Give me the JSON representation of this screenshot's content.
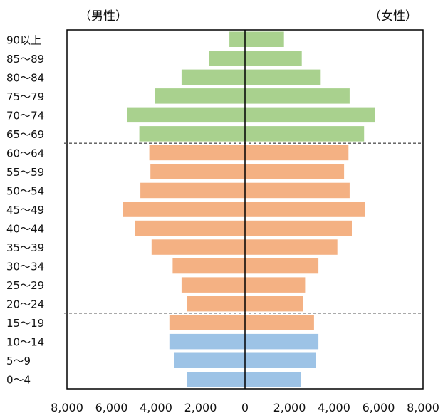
{
  "chart_data": {
    "type": "bar",
    "orientation": "horizontal",
    "subtype": "population-pyramid",
    "title": "",
    "left_label": "（男性）",
    "right_label": "（女性）",
    "categories": [
      "90以上",
      "85〜89",
      "80〜84",
      "75〜79",
      "70〜74",
      "65〜69",
      "60〜64",
      "55〜59",
      "50〜54",
      "45〜49",
      "40〜44",
      "35〜39",
      "30〜34",
      "25〜29",
      "20〜24",
      "15〜19",
      "10〜14",
      "5〜9",
      "0〜4"
    ],
    "series": [
      {
        "name": "男性",
        "side": "left",
        "values": [
          700,
          1600,
          2850,
          4050,
          5300,
          4750,
          4300,
          4250,
          4700,
          5500,
          4950,
          4200,
          3250,
          2850,
          2600,
          3400,
          3400,
          3200,
          2600
        ]
      },
      {
        "name": "女性",
        "side": "right",
        "values": [
          1750,
          2550,
          3400,
          4700,
          5850,
          5350,
          4650,
          4450,
          4700,
          5400,
          4800,
          4150,
          3300,
          2700,
          2600,
          3100,
          3300,
          3200,
          2500
        ]
      }
    ],
    "bar_colors": [
      "#a9d18e",
      "#a9d18e",
      "#a9d18e",
      "#a9d18e",
      "#a9d18e",
      "#a9d18e",
      "#f4b183",
      "#f4b183",
      "#f4b183",
      "#f4b183",
      "#f4b183",
      "#f4b183",
      "#f4b183",
      "#f4b183",
      "#f4b183",
      "#f4b183",
      "#9dc3e6",
      "#9dc3e6",
      "#9dc3e6"
    ],
    "xlim": [
      -8000,
      8000
    ],
    "x_ticks": [
      "8,000",
      "6,000",
      "4,000",
      "2,000",
      "0",
      "2,000",
      "4,000",
      "6,000",
      "8,000"
    ],
    "dashed_lines_after_category": [
      "60〜64",
      "15〜19"
    ],
    "grid": false,
    "legend": "none"
  }
}
